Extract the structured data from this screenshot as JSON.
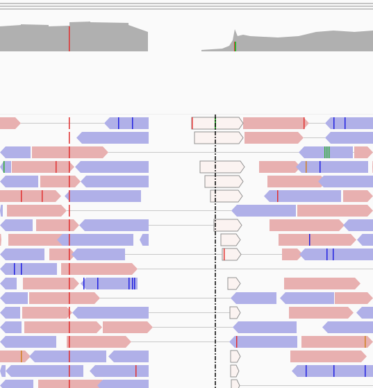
{
  "colors": {
    "coverage": "#b0b0b0",
    "forward_read": "#e8b0b0",
    "reverse_read": "#b0b0e8",
    "forward_edge": "#d08888",
    "reverse_edge": "#8888cc",
    "connector": "#c8c8c8",
    "mismatch_t": "#e03030",
    "mismatch_a": "#30b030",
    "mismatch_c": "#2020e0",
    "mismatch_g": "#d08020",
    "soft_clip_fill": "#fbf3f1",
    "soft_clip_edge": "#909090",
    "center_line": "#000000",
    "rule": "#909090",
    "background": "#fafafa"
  },
  "icons": {
    "forward_strand": "arrow-right-read-icon",
    "reverse_strand": "arrow-left-read-icon",
    "center_guide": "dash-dot-center-line-icon"
  },
  "coverage_track": {
    "mismatch_markers": [
      {
        "base": "T",
        "color_key": "mismatch_t"
      },
      {
        "base": "A",
        "color_key": "mismatch_a"
      }
    ]
  },
  "alignment_rows": 19
}
